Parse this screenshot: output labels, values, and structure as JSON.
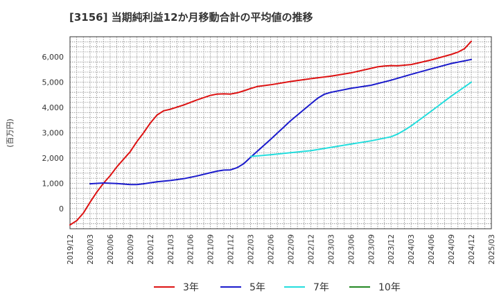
{
  "chart_data": {
    "type": "line",
    "title": "[3156]  当期純利益12か月移動合計の平均値の推移",
    "ylabel": "(百万円)",
    "xlabel": "",
    "ylim": [
      -800,
      6800
    ],
    "yticks": [
      0,
      1000,
      2000,
      3000,
      4000,
      5000,
      6000
    ],
    "ytick_labels": [
      "0",
      "1,000",
      "2,000",
      "3,000",
      "4,000",
      "5,000",
      "6,000"
    ],
    "x_range": [
      "2019/12",
      "2025/03"
    ],
    "xtick_labels": [
      "2019/12",
      "2020/03",
      "2020/06",
      "2020/09",
      "2020/12",
      "2021/03",
      "2021/06",
      "2021/09",
      "2021/12",
      "2022/03",
      "2022/06",
      "2022/09",
      "2022/12",
      "2023/03",
      "2023/06",
      "2023/09",
      "2023/12",
      "2024/03",
      "2024/06",
      "2024/09",
      "2024/12",
      "2025/03"
    ],
    "grid": true,
    "legend_position": "bottom",
    "series": [
      {
        "name": "3年",
        "color": "#dd1111",
        "x": [
          "2019/12",
          "2020/01",
          "2020/02",
          "2020/03",
          "2020/04",
          "2020/05",
          "2020/06",
          "2020/07",
          "2020/08",
          "2020/09",
          "2020/10",
          "2020/11",
          "2020/12",
          "2021/01",
          "2021/02",
          "2021/03",
          "2021/05",
          "2021/07",
          "2021/09",
          "2021/10",
          "2021/11",
          "2021/12",
          "2022/01",
          "2022/02",
          "2022/03",
          "2022/04",
          "2022/06",
          "2022/09",
          "2022/12",
          "2023/03",
          "2023/06",
          "2023/09",
          "2023/10",
          "2023/11",
          "2023/12",
          "2024/01",
          "2024/03",
          "2024/06",
          "2024/09",
          "2024/10",
          "2024/11",
          "2024/12"
        ],
        "values": [
          -650,
          -480,
          -180,
          250,
          650,
          1000,
          1300,
          1650,
          1950,
          2250,
          2650,
          3000,
          3380,
          3700,
          3870,
          3930,
          4100,
          4300,
          4480,
          4530,
          4540,
          4530,
          4580,
          4660,
          4750,
          4830,
          4900,
          5030,
          5140,
          5240,
          5370,
          5550,
          5610,
          5640,
          5660,
          5650,
          5700,
          5880,
          6100,
          6190,
          6330,
          6620
        ]
      },
      {
        "name": "5年",
        "color": "#1a1acc",
        "x": [
          "2020/03",
          "2020/05",
          "2020/07",
          "2020/09",
          "2020/10",
          "2020/11",
          "2020/12",
          "2021/01",
          "2021/03",
          "2021/05",
          "2021/07",
          "2021/09",
          "2021/10",
          "2021/11",
          "2021/12",
          "2022/01",
          "2022/02",
          "2022/03",
          "2022/06",
          "2022/09",
          "2022/12",
          "2023/01",
          "2023/02",
          "2023/03",
          "2023/06",
          "2023/09",
          "2023/12",
          "2024/03",
          "2024/06",
          "2024/09",
          "2024/12"
        ],
        "values": [
          980,
          1010,
          990,
          950,
          950,
          980,
          1020,
          1060,
          1110,
          1180,
          1290,
          1420,
          1480,
          1520,
          1530,
          1620,
          1780,
          2030,
          2740,
          3480,
          4140,
          4360,
          4520,
          4600,
          4760,
          4880,
          5080,
          5310,
          5530,
          5740,
          5900
        ]
      },
      {
        "name": "7年",
        "color": "#22dddd",
        "x": [
          "2022/03",
          "2022/06",
          "2022/09",
          "2022/12",
          "2023/03",
          "2023/06",
          "2023/09",
          "2023/12",
          "2024/01",
          "2024/02",
          "2024/03",
          "2024/06",
          "2024/09",
          "2024/12"
        ],
        "values": [
          2060,
          2130,
          2210,
          2290,
          2420,
          2550,
          2680,
          2840,
          2950,
          3100,
          3270,
          3850,
          4450,
          5000
        ]
      },
      {
        "name": "10年",
        "color": "#228822",
        "x": [],
        "values": []
      }
    ]
  }
}
